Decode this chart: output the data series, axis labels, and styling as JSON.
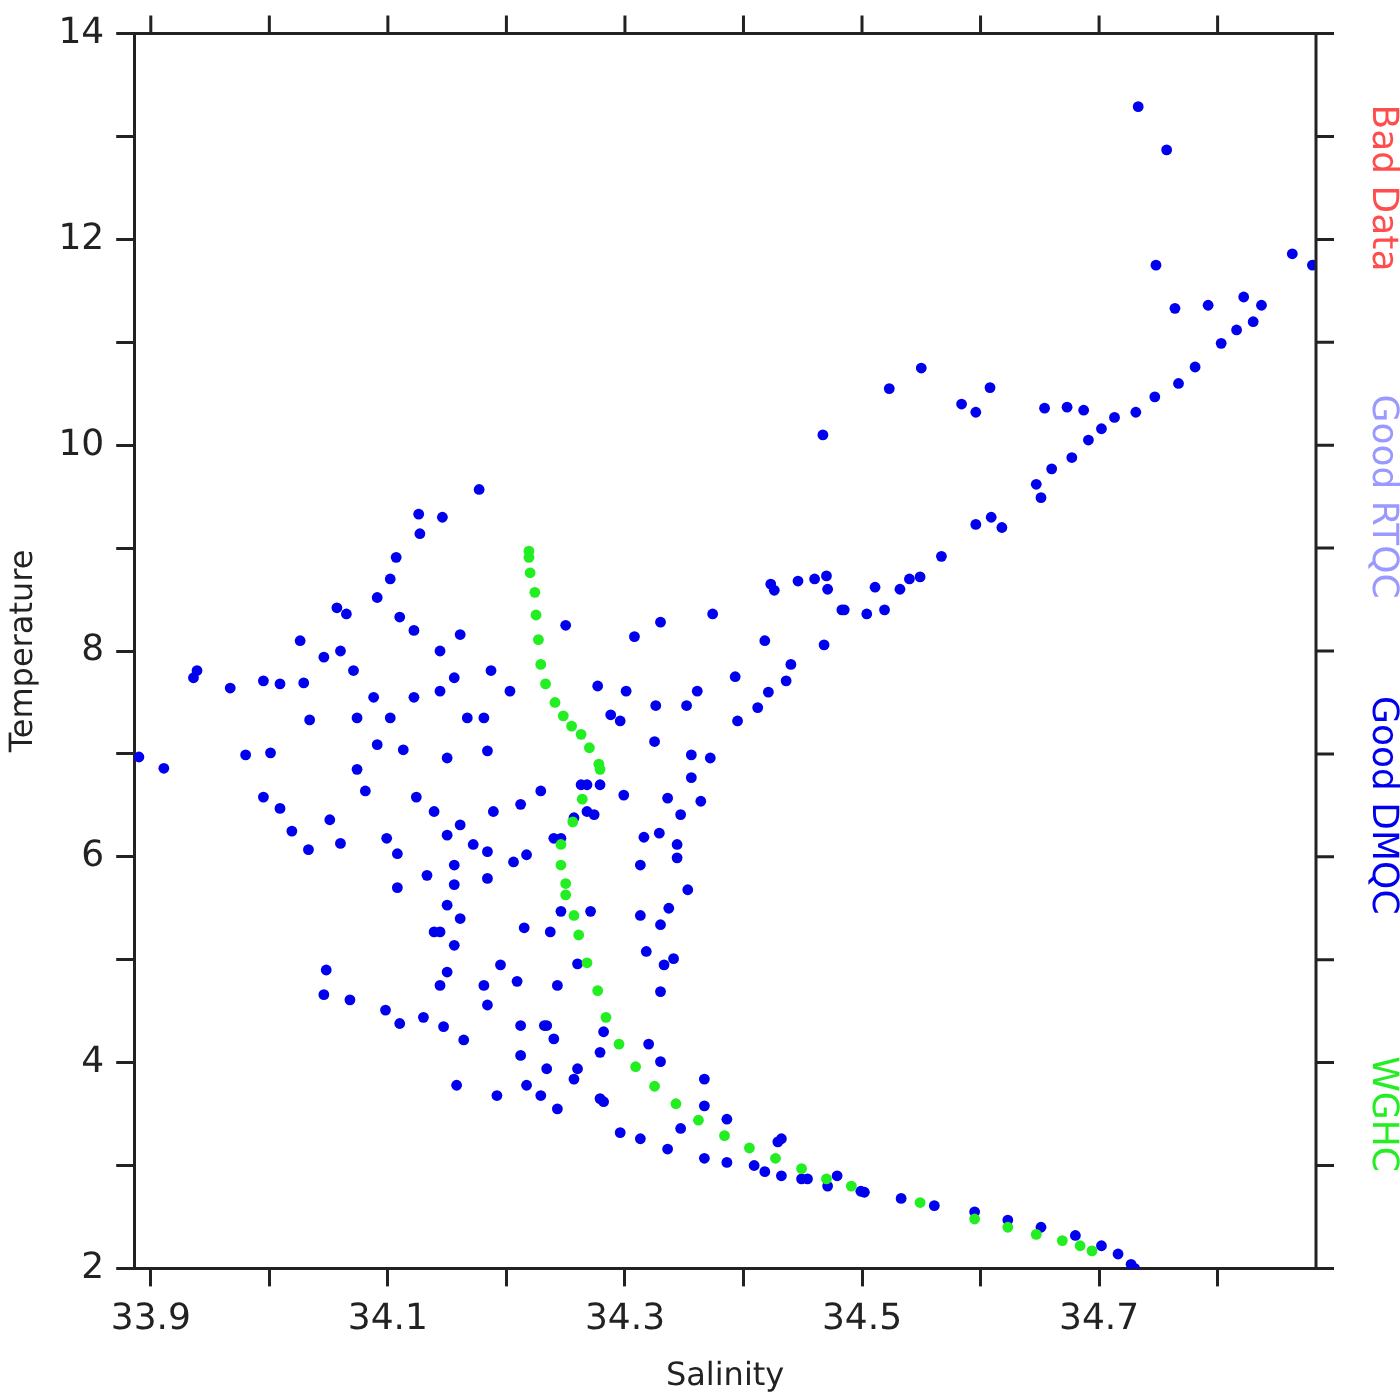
{
  "chart_data": {
    "type": "scatter",
    "xlabel": "Salinity",
    "ylabel": "Temperature",
    "xlim": [
      33.886,
      34.883
    ],
    "ylim": [
      2,
      14
    ],
    "xticks": [
      33.9,
      {
        "value": 34.0,
        "label": null
      },
      34.1,
      {
        "value": 34.2,
        "label": null
      },
      34.3,
      {
        "value": 34.4,
        "label": null
      },
      34.5,
      {
        "value": 34.6,
        "label": null
      },
      34.7,
      {
        "value": 34.8,
        "label": null
      }
    ],
    "yticks": [
      2,
      {
        "value": 3,
        "label": null
      },
      4,
      {
        "value": 5,
        "label": null
      },
      6,
      {
        "value": 7,
        "label": null
      },
      8,
      {
        "value": 9,
        "label": null
      },
      10,
      {
        "value": 11,
        "label": null
      },
      12,
      {
        "value": 13,
        "label": null
      },
      14
    ],
    "grid": false,
    "legend": "right",
    "marker": "circle",
    "series": [
      {
        "name": "Bad Data",
        "color": "#ff4d4d"
      },
      {
        "name": "Good RTQC",
        "color": "#9999ff"
      },
      {
        "name": "Good DMQC",
        "color": "#0000ee",
        "x": [
          34.177,
          34.126,
          34.146,
          34.127,
          34.107,
          34.102,
          34.091,
          34.057,
          34.065,
          34.11,
          34.026,
          34.06,
          34.071,
          34.122,
          34.144,
          34.161,
          33.939,
          33.936,
          33.967,
          33.995,
          34.009,
          34.029,
          34.046,
          34.088,
          34.122,
          34.144,
          34.156,
          34.034,
          34.074,
          34.102,
          34.187,
          34.203,
          34.167,
          34.181,
          33.89,
          33.911,
          33.98,
          34.001,
          34.091,
          34.113,
          34.15,
          34.184,
          33.995,
          34.009,
          34.019,
          34.033,
          34.051,
          34.06,
          34.074,
          34.081,
          34.099,
          34.108,
          34.124,
          34.139,
          34.15,
          34.161,
          34.172,
          34.184,
          34.189,
          34.212,
          34.229,
          34.246,
          34.268,
          34.279,
          34.263,
          34.156,
          34.156,
          34.15,
          34.161,
          34.144,
          34.156,
          34.15,
          34.144,
          34.139,
          34.108,
          34.133,
          34.184,
          34.206,
          34.215,
          34.237,
          34.246,
          34.271,
          34.243,
          34.26,
          34.048,
          34.046,
          34.068,
          34.098,
          34.11,
          34.13,
          34.147,
          34.164,
          34.158,
          34.181,
          34.195,
          34.209,
          34.184,
          34.212,
          34.234,
          34.212,
          34.234,
          34.192,
          34.229,
          34.257,
          34.279,
          34.25,
          34.308,
          34.33,
          34.277,
          34.301,
          34.288,
          34.296,
          34.326,
          34.352,
          34.361,
          34.374,
          34.393,
          34.395,
          34.412,
          34.421,
          34.418,
          34.426,
          34.446,
          34.47,
          34.485,
          34.468,
          34.44,
          34.436,
          34.325,
          34.356,
          34.372,
          34.356,
          34.364,
          34.347,
          34.336,
          34.299,
          34.268,
          34.274,
          34.257,
          34.24,
          34.217,
          34.316,
          34.329,
          34.313,
          34.344,
          34.353,
          34.344,
          34.313,
          34.337,
          34.33,
          34.318,
          34.333,
          34.341,
          34.33,
          34.32,
          34.33,
          34.367,
          34.367,
          34.282,
          34.279,
          34.26,
          34.24,
          34.232,
          34.217,
          34.243,
          34.282,
          34.296,
          34.313,
          34.336,
          34.347,
          34.367,
          34.386,
          34.386,
          34.409,
          34.432,
          34.432,
          34.454,
          34.479,
          34.499,
          34.467,
          34.523,
          34.55,
          34.584,
          34.596,
          34.608,
          34.654,
          34.673,
          34.687,
          34.733,
          34.757,
          34.748,
          34.764,
          34.792,
          34.822,
          34.837,
          34.863,
          34.88,
          34.423,
          34.46,
          34.471,
          34.511,
          34.54,
          34.549,
          34.567,
          34.483,
          34.504,
          34.519,
          34.532,
          34.596,
          34.609,
          34.618,
          34.647,
          34.651,
          34.66,
          34.677,
          34.691,
          34.702,
          34.713,
          34.731,
          34.747,
          34.767,
          34.781,
          34.803,
          34.816,
          34.83,
          34.418,
          34.429,
          34.449,
          34.471,
          34.502,
          34.533,
          34.561,
          34.595,
          34.623,
          34.651,
          34.68,
          34.702,
          34.716,
          34.727,
          34.73
        ],
        "values": [
          9.57,
          9.33,
          9.3,
          9.14,
          8.91,
          8.7,
          8.52,
          8.42,
          8.36,
          8.33,
          8.1,
          8.0,
          7.81,
          8.2,
          8.0,
          8.16,
          7.81,
          7.74,
          7.64,
          7.71,
          7.68,
          7.69,
          7.94,
          7.55,
          7.55,
          7.61,
          7.74,
          7.33,
          7.35,
          7.35,
          7.81,
          7.61,
          7.35,
          7.35,
          6.97,
          6.86,
          6.99,
          7.01,
          7.09,
          7.04,
          6.96,
          7.03,
          6.58,
          6.47,
          6.25,
          6.07,
          6.36,
          6.13,
          6.85,
          6.64,
          6.18,
          6.03,
          6.58,
          6.44,
          6.21,
          6.31,
          6.12,
          6.05,
          6.44,
          6.51,
          6.64,
          6.18,
          6.44,
          6.7,
          6.7,
          5.92,
          5.73,
          5.53,
          5.4,
          5.27,
          5.14,
          4.88,
          4.75,
          5.27,
          5.7,
          5.82,
          5.79,
          5.95,
          5.31,
          5.27,
          5.47,
          5.47,
          4.75,
          4.96,
          4.9,
          4.66,
          4.61,
          4.51,
          4.38,
          4.44,
          4.35,
          4.22,
          3.78,
          4.75,
          4.95,
          4.79,
          4.56,
          4.36,
          4.36,
          4.07,
          3.94,
          3.68,
          3.68,
          3.84,
          3.65,
          8.25,
          8.14,
          8.28,
          7.66,
          7.61,
          7.38,
          7.32,
          7.47,
          7.47,
          7.61,
          8.36,
          7.75,
          7.32,
          7.45,
          7.6,
          8.1,
          8.59,
          8.68,
          8.73,
          8.4,
          8.06,
          7.87,
          7.71,
          7.12,
          6.99,
          6.96,
          6.77,
          6.54,
          6.41,
          6.57,
          6.6,
          6.7,
          6.41,
          6.38,
          6.18,
          6.02,
          6.19,
          6.23,
          5.92,
          6.12,
          5.68,
          5.99,
          5.43,
          5.5,
          5.34,
          5.08,
          4.95,
          5.01,
          4.69,
          4.18,
          4.01,
          3.84,
          3.58,
          4.3,
          4.1,
          3.94,
          4.23,
          4.36,
          3.78,
          3.55,
          3.62,
          3.32,
          3.26,
          3.16,
          3.36,
          3.07,
          3.45,
          3.03,
          3.0,
          3.26,
          2.9,
          2.87,
          2.9,
          2.75,
          10.1,
          10.55,
          10.75,
          10.4,
          10.32,
          10.56,
          10.36,
          10.37,
          10.34,
          13.29,
          12.87,
          11.75,
          11.33,
          11.36,
          11.44,
          11.36,
          11.86,
          11.75,
          8.65,
          8.7,
          8.6,
          8.62,
          8.7,
          8.72,
          8.92,
          8.4,
          8.36,
          8.4,
          8.6,
          9.23,
          9.3,
          9.2,
          9.62,
          9.49,
          9.77,
          9.88,
          10.05,
          10.16,
          10.27,
          10.32,
          10.47,
          10.6,
          10.76,
          10.99,
          11.12,
          11.2,
          2.94,
          3.23,
          2.87,
          2.8,
          2.74,
          2.68,
          2.61,
          2.55,
          2.47,
          2.4,
          2.32,
          2.22,
          2.14,
          2.04,
          2.0
        ]
      },
      {
        "name": "WGHC",
        "color": "#22ee22",
        "x": [
          34.219,
          34.219,
          34.22,
          34.224,
          34.225,
          34.227,
          34.229,
          34.233,
          34.241,
          34.248,
          34.255,
          34.263,
          34.27,
          34.278,
          34.279,
          34.264,
          34.256,
          34.246,
          34.246,
          34.25,
          34.25,
          34.257,
          34.261,
          34.268,
          34.277,
          34.284,
          34.295,
          34.309,
          34.325,
          34.343,
          34.362,
          34.384,
          34.405,
          34.427,
          34.449,
          34.47,
          34.491,
          34.549,
          34.595,
          34.623,
          34.647,
          34.669,
          34.684,
          34.694
        ],
        "values": [
          8.97,
          8.91,
          8.76,
          8.57,
          8.35,
          8.11,
          7.87,
          7.68,
          7.5,
          7.37,
          7.27,
          7.19,
          7.06,
          6.9,
          6.85,
          6.56,
          6.34,
          6.12,
          5.92,
          5.74,
          5.63,
          5.43,
          5.24,
          4.97,
          4.7,
          4.44,
          4.18,
          3.96,
          3.77,
          3.6,
          3.44,
          3.29,
          3.17,
          3.07,
          2.97,
          2.87,
          2.8,
          2.64,
          2.48,
          2.4,
          2.33,
          2.27,
          2.22,
          2.17
        ]
      }
    ]
  }
}
